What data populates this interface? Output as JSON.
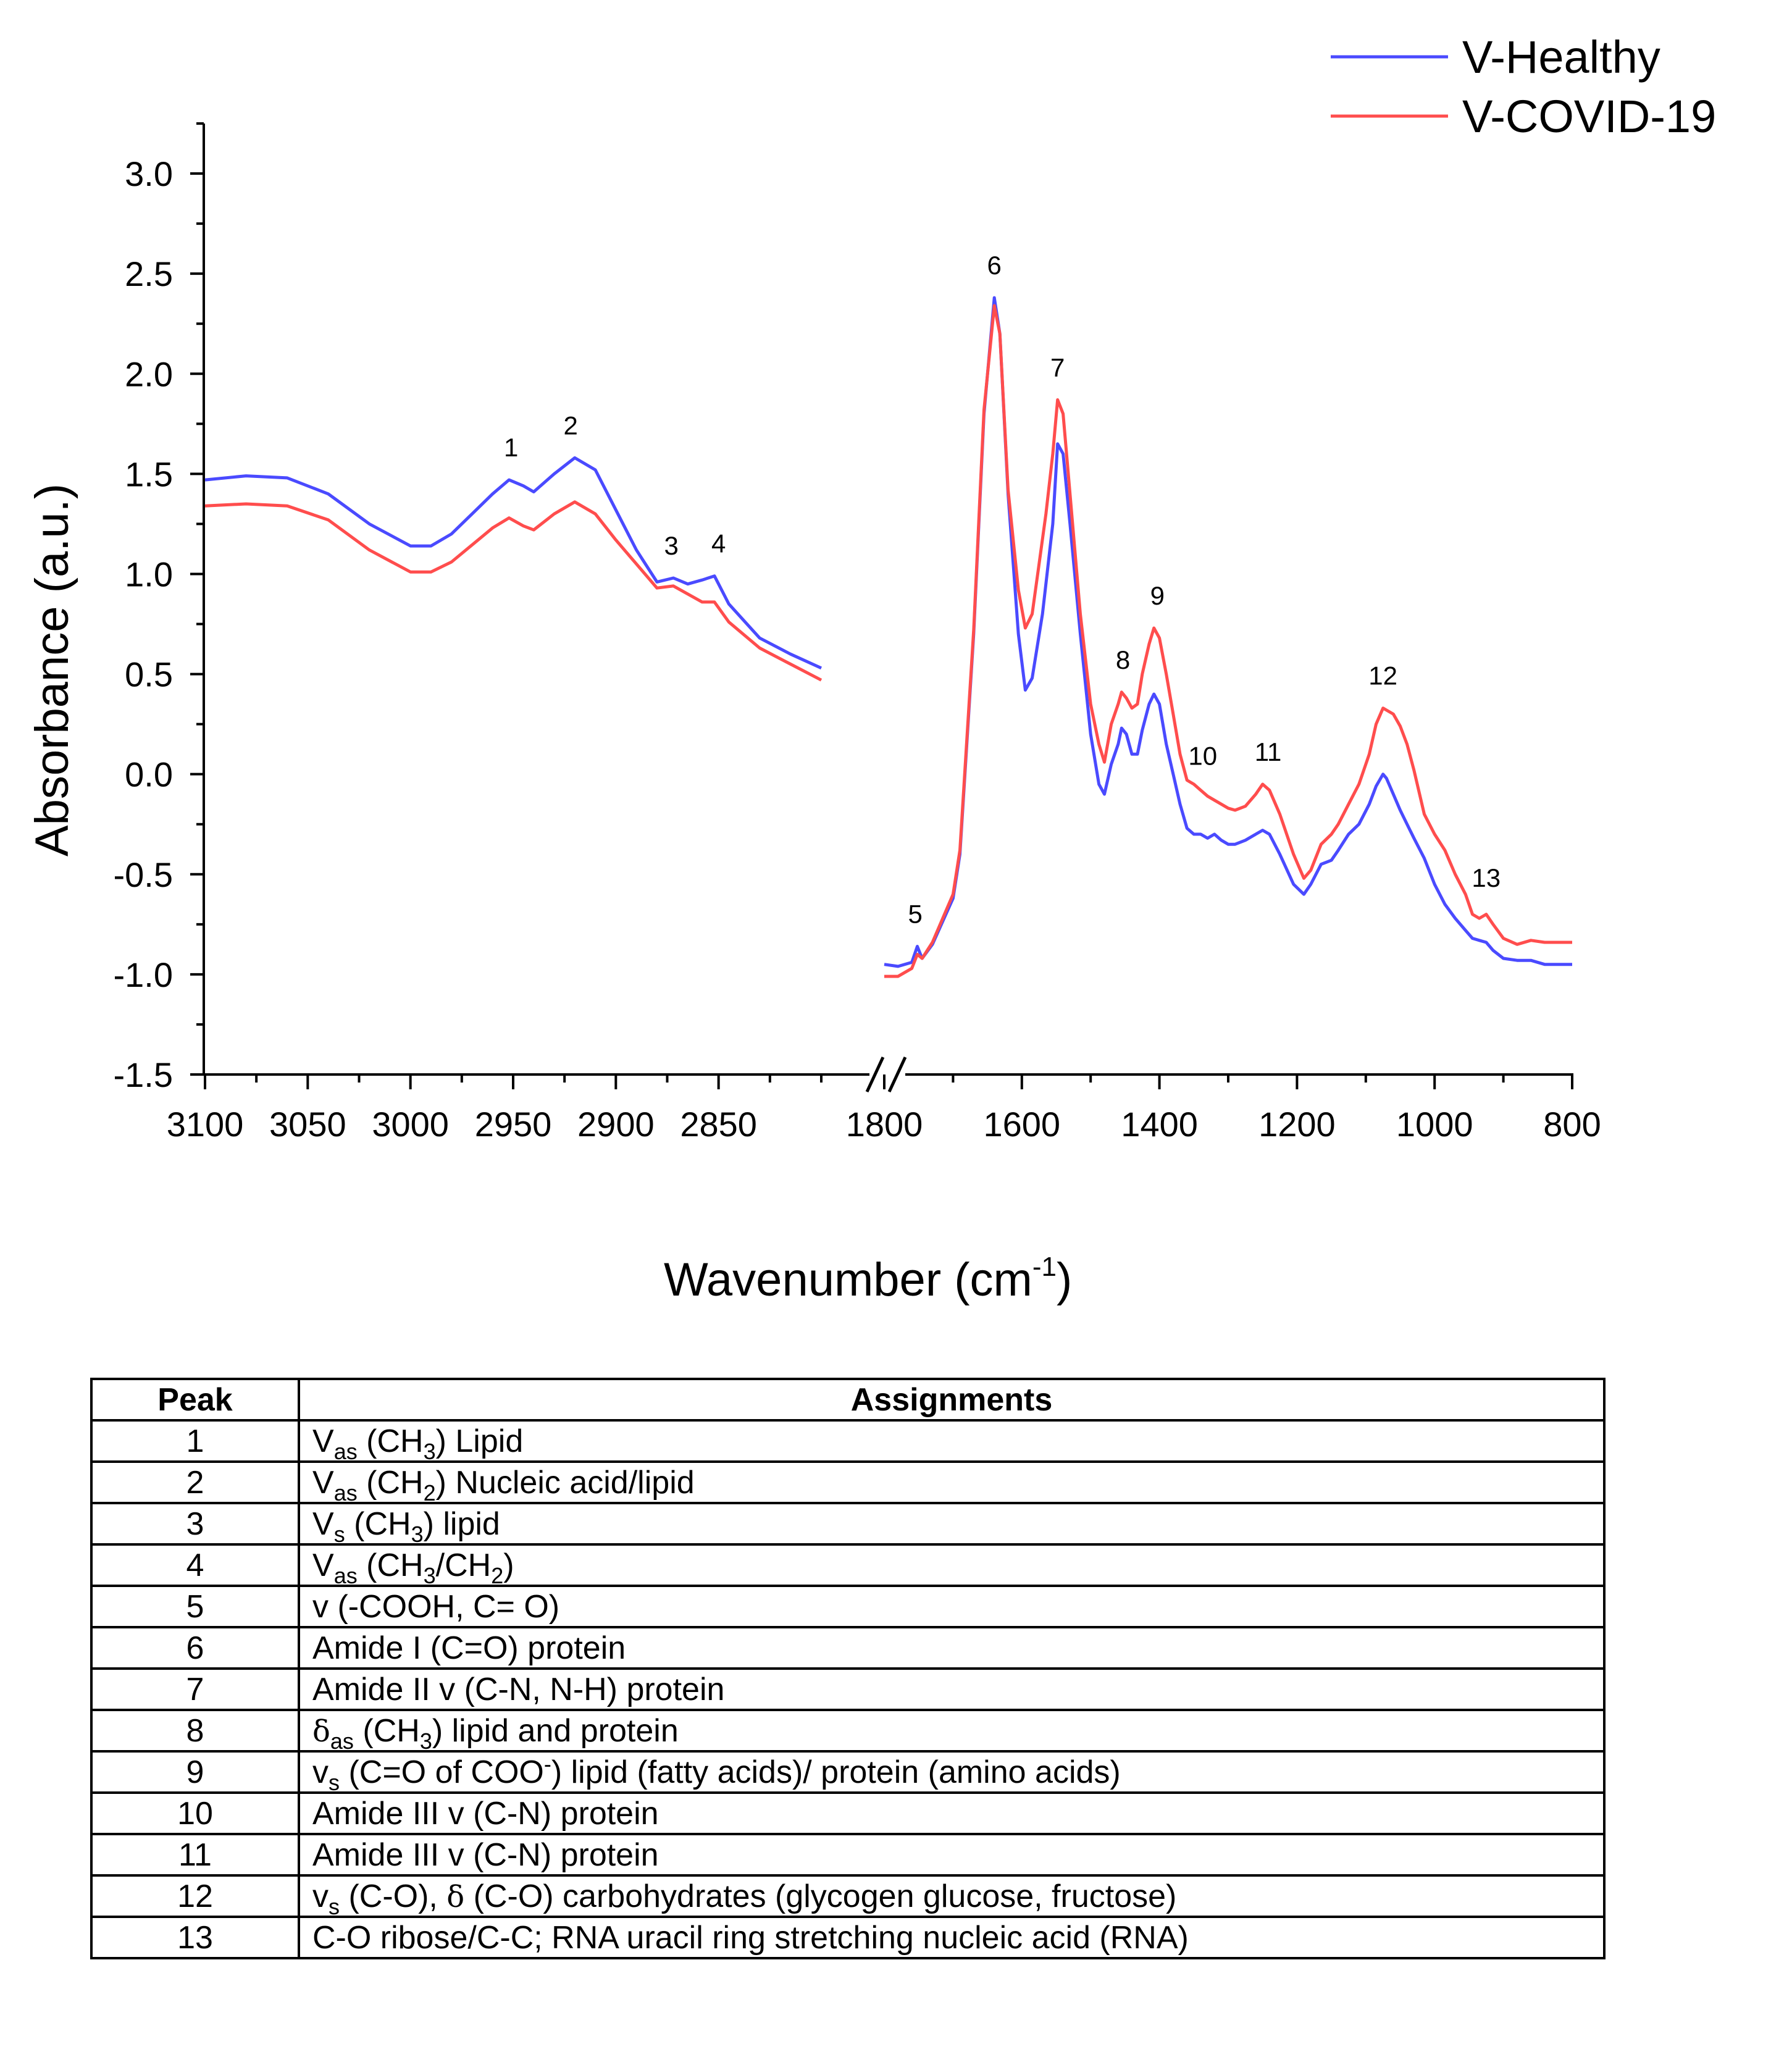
{
  "chart_data": {
    "type": "line",
    "ylabel": "Absorbance (a.u.)",
    "xlabel": "Wavenumber (cm",
    "xlabel_superscript": "-1",
    "xlabel_suffix": ")",
    "ylim": [
      -1.5,
      3.25
    ],
    "yticks": [
      "3.0",
      "2.5",
      "2.0",
      "1.5",
      "1.0",
      "0.5",
      "0.0",
      "-0.5",
      "-1.0",
      "-1.5"
    ],
    "ytick_values": [
      3.0,
      2.5,
      2.0,
      1.5,
      1.0,
      0.5,
      0.0,
      -0.5,
      -1.0,
      -1.5
    ],
    "x_segments": [
      {
        "xlim": [
          3100,
          2800
        ],
        "ticks": [
          "3100",
          "3050",
          "3000",
          "2950",
          "2900",
          "2850"
        ],
        "tick_values": [
          3100,
          3050,
          3000,
          2950,
          2900,
          2850
        ]
      },
      {
        "xlim": [
          1800,
          800
        ],
        "ticks": [
          "1800",
          "1600",
          "1400",
          "1200",
          "1000",
          "800"
        ],
        "tick_values": [
          1800,
          1600,
          1400,
          1200,
          1000,
          800
        ]
      }
    ],
    "series": [
      {
        "name": "V-Healthy",
        "color": "#4a4aff",
        "high_region": [
          [
            3100,
            1.47
          ],
          [
            3080,
            1.49
          ],
          [
            3060,
            1.48
          ],
          [
            3040,
            1.4
          ],
          [
            3020,
            1.25
          ],
          [
            3000,
            1.14
          ],
          [
            2990,
            1.14
          ],
          [
            2980,
            1.2
          ],
          [
            2960,
            1.4
          ],
          [
            2952,
            1.47
          ],
          [
            2945,
            1.44
          ],
          [
            2940,
            1.41
          ],
          [
            2930,
            1.5
          ],
          [
            2920,
            1.58
          ],
          [
            2910,
            1.52
          ],
          [
            2900,
            1.32
          ],
          [
            2890,
            1.12
          ],
          [
            2880,
            0.96
          ],
          [
            2872,
            0.98
          ],
          [
            2865,
            0.95
          ],
          [
            2858,
            0.97
          ],
          [
            2852,
            0.99
          ],
          [
            2845,
            0.85
          ],
          [
            2830,
            0.68
          ],
          [
            2815,
            0.6
          ],
          [
            2800,
            0.53
          ]
        ],
        "low_region": [
          [
            1800,
            -0.95
          ],
          [
            1780,
            -0.96
          ],
          [
            1760,
            -0.94
          ],
          [
            1752,
            -0.86
          ],
          [
            1745,
            -0.92
          ],
          [
            1730,
            -0.85
          ],
          [
            1700,
            -0.62
          ],
          [
            1690,
            -0.4
          ],
          [
            1670,
            0.7
          ],
          [
            1655,
            1.8
          ],
          [
            1640,
            2.38
          ],
          [
            1632,
            2.2
          ],
          [
            1620,
            1.4
          ],
          [
            1605,
            0.7
          ],
          [
            1595,
            0.42
          ],
          [
            1585,
            0.48
          ],
          [
            1570,
            0.8
          ],
          [
            1555,
            1.25
          ],
          [
            1548,
            1.65
          ],
          [
            1540,
            1.6
          ],
          [
            1530,
            1.25
          ],
          [
            1515,
            0.7
          ],
          [
            1500,
            0.2
          ],
          [
            1488,
            -0.05
          ],
          [
            1480,
            -0.1
          ],
          [
            1470,
            0.05
          ],
          [
            1460,
            0.15
          ],
          [
            1455,
            0.23
          ],
          [
            1448,
            0.2
          ],
          [
            1440,
            0.1
          ],
          [
            1432,
            0.1
          ],
          [
            1425,
            0.22
          ],
          [
            1415,
            0.35
          ],
          [
            1408,
            0.4
          ],
          [
            1400,
            0.35
          ],
          [
            1390,
            0.15
          ],
          [
            1380,
            0.0
          ],
          [
            1370,
            -0.15
          ],
          [
            1360,
            -0.27
          ],
          [
            1350,
            -0.3
          ],
          [
            1340,
            -0.3
          ],
          [
            1330,
            -0.32
          ],
          [
            1320,
            -0.3
          ],
          [
            1310,
            -0.33
          ],
          [
            1300,
            -0.35
          ],
          [
            1290,
            -0.35
          ],
          [
            1275,
            -0.33
          ],
          [
            1260,
            -0.3
          ],
          [
            1250,
            -0.28
          ],
          [
            1240,
            -0.3
          ],
          [
            1225,
            -0.4
          ],
          [
            1205,
            -0.55
          ],
          [
            1190,
            -0.6
          ],
          [
            1180,
            -0.55
          ],
          [
            1165,
            -0.45
          ],
          [
            1150,
            -0.43
          ],
          [
            1140,
            -0.38
          ],
          [
            1125,
            -0.3
          ],
          [
            1110,
            -0.25
          ],
          [
            1095,
            -0.15
          ],
          [
            1085,
            -0.06
          ],
          [
            1075,
            0.0
          ],
          [
            1070,
            -0.02
          ],
          [
            1060,
            -0.1
          ],
          [
            1050,
            -0.18
          ],
          [
            1040,
            -0.25
          ],
          [
            1030,
            -0.32
          ],
          [
            1015,
            -0.42
          ],
          [
            1000,
            -0.55
          ],
          [
            985,
            -0.65
          ],
          [
            970,
            -0.72
          ],
          [
            955,
            -0.78
          ],
          [
            945,
            -0.82
          ],
          [
            935,
            -0.83
          ],
          [
            925,
            -0.84
          ],
          [
            915,
            -0.88
          ],
          [
            900,
            -0.92
          ],
          [
            880,
            -0.93
          ],
          [
            860,
            -0.93
          ],
          [
            840,
            -0.95
          ],
          [
            820,
            -0.95
          ],
          [
            800,
            -0.95
          ]
        ]
      },
      {
        "name": "V-COVID-19",
        "color": "#ff4d4d",
        "high_region": [
          [
            3100,
            1.34
          ],
          [
            3080,
            1.35
          ],
          [
            3060,
            1.34
          ],
          [
            3040,
            1.27
          ],
          [
            3020,
            1.12
          ],
          [
            3000,
            1.01
          ],
          [
            2990,
            1.01
          ],
          [
            2980,
            1.06
          ],
          [
            2960,
            1.23
          ],
          [
            2952,
            1.28
          ],
          [
            2945,
            1.24
          ],
          [
            2940,
            1.22
          ],
          [
            2930,
            1.3
          ],
          [
            2920,
            1.36
          ],
          [
            2910,
            1.3
          ],
          [
            2900,
            1.17
          ],
          [
            2890,
            1.05
          ],
          [
            2880,
            0.93
          ],
          [
            2872,
            0.94
          ],
          [
            2865,
            0.9
          ],
          [
            2858,
            0.86
          ],
          [
            2852,
            0.86
          ],
          [
            2845,
            0.76
          ],
          [
            2830,
            0.63
          ],
          [
            2815,
            0.55
          ],
          [
            2800,
            0.47
          ]
        ],
        "low_region": [
          [
            1800,
            -1.01
          ],
          [
            1780,
            -1.01
          ],
          [
            1760,
            -0.97
          ],
          [
            1752,
            -0.9
          ],
          [
            1745,
            -0.92
          ],
          [
            1730,
            -0.84
          ],
          [
            1700,
            -0.6
          ],
          [
            1690,
            -0.38
          ],
          [
            1670,
            0.72
          ],
          [
            1655,
            1.82
          ],
          [
            1640,
            2.34
          ],
          [
            1632,
            2.2
          ],
          [
            1620,
            1.42
          ],
          [
            1605,
            0.92
          ],
          [
            1595,
            0.73
          ],
          [
            1585,
            0.8
          ],
          [
            1575,
            1.05
          ],
          [
            1565,
            1.3
          ],
          [
            1555,
            1.6
          ],
          [
            1548,
            1.87
          ],
          [
            1540,
            1.8
          ],
          [
            1530,
            1.4
          ],
          [
            1515,
            0.8
          ],
          [
            1500,
            0.35
          ],
          [
            1488,
            0.15
          ],
          [
            1480,
            0.06
          ],
          [
            1470,
            0.25
          ],
          [
            1460,
            0.35
          ],
          [
            1455,
            0.41
          ],
          [
            1448,
            0.38
          ],
          [
            1440,
            0.33
          ],
          [
            1432,
            0.35
          ],
          [
            1425,
            0.5
          ],
          [
            1415,
            0.65
          ],
          [
            1408,
            0.73
          ],
          [
            1400,
            0.68
          ],
          [
            1390,
            0.5
          ],
          [
            1380,
            0.3
          ],
          [
            1370,
            0.1
          ],
          [
            1360,
            -0.03
          ],
          [
            1350,
            -0.05
          ],
          [
            1340,
            -0.08
          ],
          [
            1330,
            -0.11
          ],
          [
            1320,
            -0.13
          ],
          [
            1310,
            -0.15
          ],
          [
            1300,
            -0.17
          ],
          [
            1290,
            -0.18
          ],
          [
            1275,
            -0.16
          ],
          [
            1260,
            -0.1
          ],
          [
            1250,
            -0.05
          ],
          [
            1240,
            -0.08
          ],
          [
            1225,
            -0.2
          ],
          [
            1205,
            -0.4
          ],
          [
            1190,
            -0.52
          ],
          [
            1180,
            -0.48
          ],
          [
            1165,
            -0.35
          ],
          [
            1150,
            -0.3
          ],
          [
            1140,
            -0.25
          ],
          [
            1125,
            -0.15
          ],
          [
            1110,
            -0.05
          ],
          [
            1095,
            0.1
          ],
          [
            1085,
            0.25
          ],
          [
            1075,
            0.33
          ],
          [
            1070,
            0.32
          ],
          [
            1060,
            0.3
          ],
          [
            1050,
            0.24
          ],
          [
            1040,
            0.15
          ],
          [
            1030,
            0.02
          ],
          [
            1015,
            -0.2
          ],
          [
            1000,
            -0.3
          ],
          [
            985,
            -0.38
          ],
          [
            970,
            -0.5
          ],
          [
            955,
            -0.6
          ],
          [
            945,
            -0.7
          ],
          [
            935,
            -0.72
          ],
          [
            925,
            -0.7
          ],
          [
            915,
            -0.75
          ],
          [
            900,
            -0.82
          ],
          [
            880,
            -0.85
          ],
          [
            860,
            -0.83
          ],
          [
            840,
            -0.84
          ],
          [
            820,
            -0.84
          ],
          [
            800,
            -0.84
          ]
        ]
      }
    ],
    "peak_labels": [
      {
        "label": "1",
        "x": 2951,
        "y": 1.47
      },
      {
        "label": "2",
        "x": 2922,
        "y": 1.58
      },
      {
        "label": "3",
        "x": 2873,
        "y": 0.98
      },
      {
        "label": "4",
        "x": 2850,
        "y": 0.99
      },
      {
        "label": "5",
        "x": 1755,
        "y": -0.86
      },
      {
        "label": "6",
        "x": 1640,
        "y": 2.38
      },
      {
        "label": "7",
        "x": 1548,
        "y": 1.87
      },
      {
        "label": "8",
        "x": 1453,
        "y": 0.41
      },
      {
        "label": "9",
        "x": 1403,
        "y": 0.73
      },
      {
        "label": "10",
        "x": 1337,
        "y": -0.07
      },
      {
        "label": "11",
        "x": 1242,
        "y": -0.05
      },
      {
        "label": "12",
        "x": 1075,
        "y": 0.33
      },
      {
        "label": "13",
        "x": 925,
        "y": -0.68
      }
    ],
    "legend_position": "top-right"
  },
  "table": {
    "headers": {
      "peak": "Peak",
      "assignments": "Assignments"
    },
    "rows": [
      {
        "peak": "1",
        "assignment": [
          {
            "t": "V"
          },
          {
            "sub": "as"
          },
          {
            "t": " (CH"
          },
          {
            "sub": "3"
          },
          {
            "t": ") Lipid"
          }
        ]
      },
      {
        "peak": "2",
        "assignment": [
          {
            "t": "V"
          },
          {
            "sub": "as"
          },
          {
            "t": " (CH"
          },
          {
            "sub": "2"
          },
          {
            "t": ") Nucleic acid/lipid"
          }
        ]
      },
      {
        "peak": "3",
        "assignment": [
          {
            "t": "V"
          },
          {
            "sub": "s"
          },
          {
            "t": " (CH"
          },
          {
            "sub": "3"
          },
          {
            "t": ") lipid"
          }
        ]
      },
      {
        "peak": "4",
        "assignment": [
          {
            "t": "V"
          },
          {
            "sub": "as"
          },
          {
            "t": " (CH"
          },
          {
            "sub": "3"
          },
          {
            "t": "/CH"
          },
          {
            "sub": "2"
          },
          {
            "t": ")"
          }
        ]
      },
      {
        "peak": "5",
        "assignment": [
          {
            "t": "v (-COOH, C= O)"
          }
        ]
      },
      {
        "peak": "6",
        "assignment": [
          {
            "t": "Amide I (C=O) protein"
          }
        ]
      },
      {
        "peak": "7",
        "assignment": [
          {
            "t": "Amide II v (C-N, N-H) protein"
          }
        ]
      },
      {
        "peak": "8",
        "assignment": [
          {
            "g": "δ"
          },
          {
            "sub": "as"
          },
          {
            "t": " (CH"
          },
          {
            "sub": "3"
          },
          {
            "t": ")  lipid and protein"
          }
        ]
      },
      {
        "peak": "9",
        "assignment": [
          {
            "t": "v"
          },
          {
            "sub": "s"
          },
          {
            "t": " (C=O of COO"
          },
          {
            "sup": "-"
          },
          {
            "t": ") lipid (fatty acids)/ protein (amino acids)"
          }
        ]
      },
      {
        "peak": "10",
        "assignment": [
          {
            "t": "Amide III v (C-N)  protein"
          }
        ]
      },
      {
        "peak": "11",
        "assignment": [
          {
            "t": "Amide III v (C-N)  protein"
          }
        ]
      },
      {
        "peak": "12",
        "assignment": [
          {
            "t": "v"
          },
          {
            "sub": "s"
          },
          {
            "t": " (C-O), "
          },
          {
            "g": "δ"
          },
          {
            "t": " (C-O) carbohydrates (glycogen glucose, fructose)"
          }
        ]
      },
      {
        "peak": "13",
        "assignment": [
          {
            "t": "C-O ribose/C-C; RNA uracil ring stretching  nucleic acid (RNA)"
          }
        ]
      }
    ]
  }
}
